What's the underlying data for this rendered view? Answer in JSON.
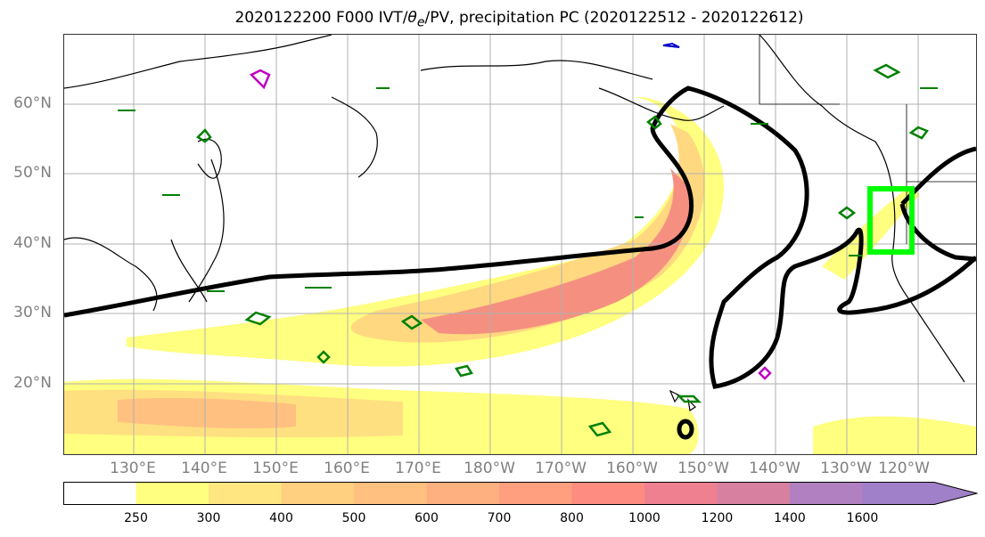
{
  "title": "2020122200 F000 IVT/θe/PV, precipitation PC (2020122512 - 2020122612)",
  "title_parts": {
    "prefix": "2020122200 F000 IVT/",
    "theta": "θ",
    "sub": "e",
    "suffix": "/PV, precipitation PC (2020122512 - 2020122612)"
  },
  "lat_labels": [
    "60°N",
    "50°N",
    "40°N",
    "30°N",
    "20°N"
  ],
  "lon_labels": [
    "130°E",
    "140°E",
    "150°E",
    "160°E",
    "170°E",
    "180°W",
    "170°W",
    "160°W",
    "150°W",
    "140°W",
    "130°W",
    "120°W"
  ],
  "colorbar": {
    "ticks": [
      "250",
      "300",
      "400",
      "500",
      "600",
      "700",
      "800",
      "1000",
      "1200",
      "1400",
      "1600"
    ],
    "colors": [
      "#ffffff",
      "#ffff80",
      "#ffe680",
      "#ffd080",
      "#ffc080",
      "#ffb080",
      "#ff9f80",
      "#ff8c80",
      "#ee8090",
      "#d880a0",
      "#b080c0",
      "#a080c8"
    ]
  },
  "colors": {
    "ivt_low": "#ffff80",
    "ivt_high": "#f08080",
    "theta_e_contour": "#000000",
    "pv_contour": "#008000",
    "box_highlight": "#00ff00",
    "coastline": "#000000",
    "gridline": "#b0b0b0"
  }
}
